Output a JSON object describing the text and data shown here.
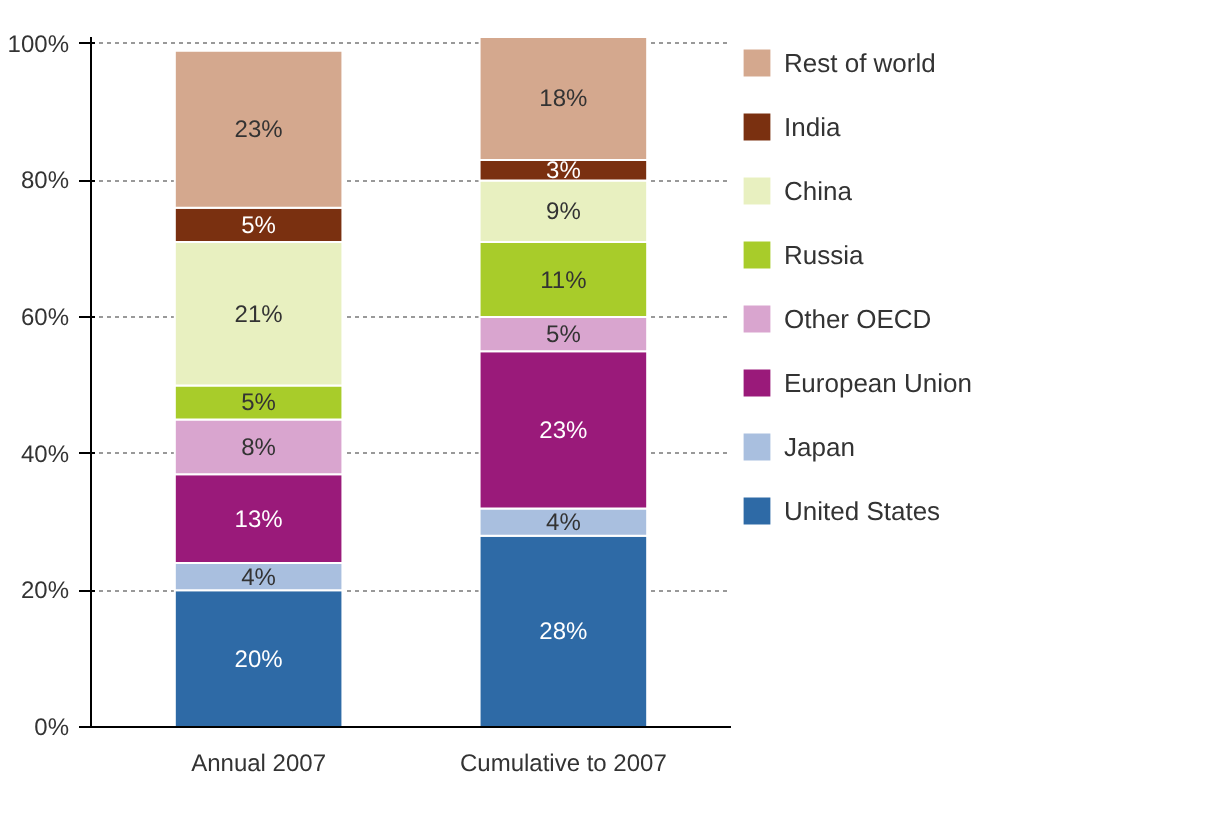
{
  "chart_data": {
    "type": "bar",
    "stacked": true,
    "categories": [
      "Annual 2007",
      "Cumulative to 2007"
    ],
    "series": [
      {
        "name": "United States",
        "color": "#2e6aa6",
        "values": [
          20,
          28
        ]
      },
      {
        "name": "Japan",
        "color": "#a9bfdf",
        "values": [
          4,
          4
        ]
      },
      {
        "name": "European Union",
        "color": "#9a1a7a",
        "values": [
          13,
          23
        ]
      },
      {
        "name": "Other OECD",
        "color": "#d9a5cf",
        "values": [
          8,
          5
        ]
      },
      {
        "name": "Russia",
        "color": "#a8cc2a",
        "values": [
          5,
          11
        ]
      },
      {
        "name": "China",
        "color": "#e8f0c0",
        "values": [
          21,
          9
        ]
      },
      {
        "name": "India",
        "color": "#7a3010",
        "values": [
          5,
          3
        ]
      },
      {
        "name": "Rest of world",
        "color": "#d4a88e",
        "values": [
          23,
          18
        ]
      }
    ],
    "value_labels": [
      [
        "20%",
        "28%"
      ],
      [
        "4%",
        "4%"
      ],
      [
        "13%",
        "23%"
      ],
      [
        "8%",
        "5%"
      ],
      [
        "5%",
        "11%"
      ],
      [
        "21%",
        "9%"
      ],
      [
        "5%",
        "3%"
      ],
      [
        "23%",
        "18%"
      ]
    ],
    "ylim": [
      0,
      101
    ],
    "yticks": [
      {
        "value": 0,
        "label": "0%"
      },
      {
        "value": 20,
        "label": "20%"
      },
      {
        "value": 40,
        "label": "40%"
      },
      {
        "value": 60,
        "label": "60%"
      },
      {
        "value": 80,
        "label": "80%"
      },
      {
        "value": 100,
        "label": "100%"
      }
    ],
    "grid": "y",
    "legend": "right"
  }
}
